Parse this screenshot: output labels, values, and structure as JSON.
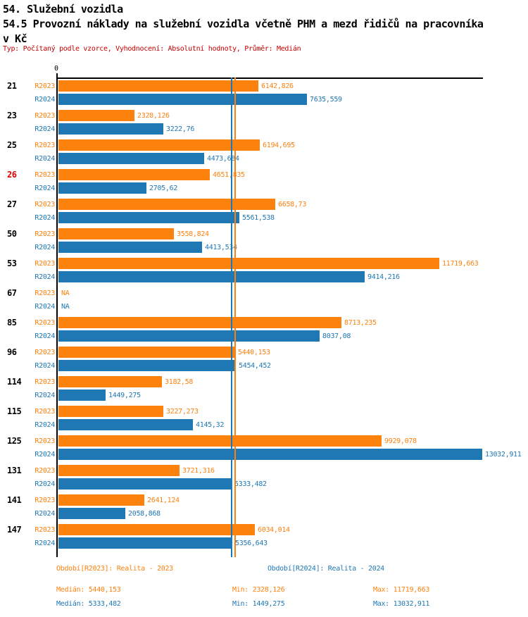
{
  "header": {
    "title_line1": "54. Služební vozidla",
    "title_line2": "54.5 Provozní náklady na služební vozidla včetně PHM a mezd řidičů na pracovníka",
    "title_line3": "v Kč",
    "meta_line": "Typ: Počítaný podle vzorce, Vyhodnocení: Absolutní hodnoty, Průměr: Medián"
  },
  "colors": {
    "series_2023": "#fd810d",
    "series_2024": "#1f77b4",
    "meta_text": "#c40000",
    "highlight_category": "#dd0000",
    "axis": "#000000"
  },
  "chart_data": {
    "type": "bar",
    "orientation": "horizontal",
    "title": "54.5 Provozní náklady na služební vozidla včetně PHM a mezd řidičů na pracovníka v Kč",
    "axis_zero_label": "0",
    "na_label": "NA",
    "xlim": [
      0,
      13032.911
    ],
    "grid": false,
    "legend_position": "bottom",
    "categories": [
      "21",
      "23",
      "25",
      "26",
      "27",
      "50",
      "53",
      "67",
      "85",
      "96",
      "114",
      "115",
      "125",
      "131",
      "141",
      "147"
    ],
    "highlighted_categories": [
      "26"
    ],
    "series": [
      {
        "name": "R2023",
        "color": "#fd810d",
        "values": [
          6142.826,
          2328.126,
          6194.695,
          4651.835,
          6658.73,
          3558.824,
          11719.663,
          null,
          8713.235,
          5440.153,
          3182.58,
          3227.273,
          9929.078,
          3721.316,
          2641.124,
          6034.014
        ],
        "labels": [
          "6142,826",
          "2328,126",
          "6194,695",
          "4651,835",
          "6658,73",
          "3558,824",
          "11719,663",
          "NA",
          "8713,235",
          "5440,153",
          "3182,58",
          "3227,273",
          "9929,078",
          "3721,316",
          "2641,124",
          "6034,014"
        ]
      },
      {
        "name": "R2024",
        "color": "#1f77b4",
        "values": [
          7635.559,
          3222.76,
          4473.684,
          2705.62,
          5561.538,
          4413.534,
          9414.216,
          null,
          8037.08,
          5454.452,
          1449.275,
          4145.32,
          13032.911,
          5333.482,
          2058.868,
          5356.643
        ],
        "labels": [
          "7635,559",
          "3222,76",
          "4473,684",
          "2705,62",
          "5561,538",
          "4413,534",
          "9414,216",
          "NA",
          "8037,08",
          "5454,452",
          "1449,275",
          "4145,32",
          "13032,911",
          "5333,482",
          "2058,868",
          "5356,643"
        ]
      }
    ],
    "reference_lines": [
      {
        "name": "median-r2024",
        "value": 5333.482,
        "color": "#1f77b4"
      },
      {
        "name": "median-r2023",
        "value": 5440.153,
        "color": "#fd810d"
      }
    ]
  },
  "legend": {
    "r2023": "Období[R2023]: Realita - 2023",
    "r2024": "Období[R2024]: Realita - 2024"
  },
  "stats": {
    "r2023": {
      "median": "Medián: 5440,153",
      "min": "Min: 2328,126",
      "max": "Max: 11719,663"
    },
    "r2024": {
      "median": "Medián: 5333,482",
      "min": "Min: 1449,275",
      "max": "Max: 13032,911"
    }
  }
}
